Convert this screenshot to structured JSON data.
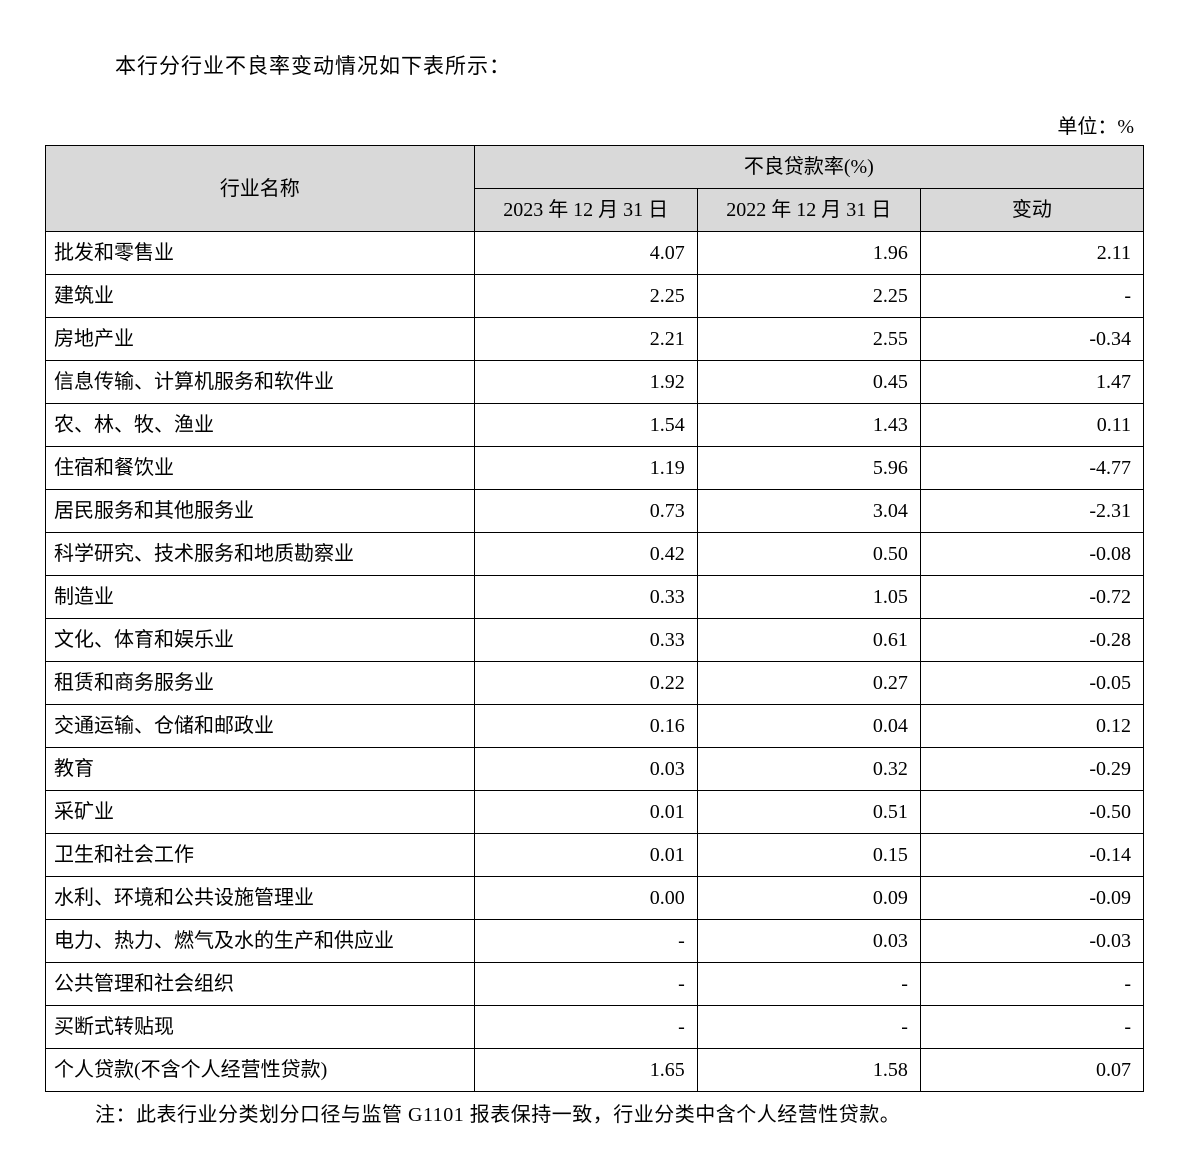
{
  "intro_text": "本行分行业不良率变动情况如下表所示：",
  "unit_label": "单位：%",
  "table": {
    "header": {
      "industry": "行业名称",
      "npl_group": "不良贷款率(%)",
      "col_2023": "2023 年 12 月 31 日",
      "col_2022": "2022 年 12 月 31 日",
      "col_change": "变动"
    },
    "rows": [
      {
        "name": "批发和零售业",
        "v2023": "4.07",
        "v2022": "1.96",
        "change": "2.11"
      },
      {
        "name": "建筑业",
        "v2023": "2.25",
        "v2022": "2.25",
        "change": "-"
      },
      {
        "name": "房地产业",
        "v2023": "2.21",
        "v2022": "2.55",
        "change": "-0.34"
      },
      {
        "name": "信息传输、计算机服务和软件业",
        "v2023": "1.92",
        "v2022": "0.45",
        "change": "1.47"
      },
      {
        "name": "农、林、牧、渔业",
        "v2023": "1.54",
        "v2022": "1.43",
        "change": "0.11"
      },
      {
        "name": "住宿和餐饮业",
        "v2023": "1.19",
        "v2022": "5.96",
        "change": "-4.77"
      },
      {
        "name": "居民服务和其他服务业",
        "v2023": "0.73",
        "v2022": "3.04",
        "change": "-2.31"
      },
      {
        "name": "科学研究、技术服务和地质勘察业",
        "v2023": "0.42",
        "v2022": "0.50",
        "change": "-0.08"
      },
      {
        "name": "制造业",
        "v2023": "0.33",
        "v2022": "1.05",
        "change": "-0.72"
      },
      {
        "name": "文化、体育和娱乐业",
        "v2023": "0.33",
        "v2022": "0.61",
        "change": "-0.28"
      },
      {
        "name": "租赁和商务服务业",
        "v2023": "0.22",
        "v2022": "0.27",
        "change": "-0.05"
      },
      {
        "name": "交通运输、仓储和邮政业",
        "v2023": "0.16",
        "v2022": "0.04",
        "change": "0.12"
      },
      {
        "name": "教育",
        "v2023": "0.03",
        "v2022": "0.32",
        "change": "-0.29"
      },
      {
        "name": "采矿业",
        "v2023": "0.01",
        "v2022": "0.51",
        "change": "-0.50"
      },
      {
        "name": "卫生和社会工作",
        "v2023": "0.01",
        "v2022": "0.15",
        "change": "-0.14"
      },
      {
        "name": "水利、环境和公共设施管理业",
        "v2023": "0.00",
        "v2022": "0.09",
        "change": "-0.09"
      },
      {
        "name": "电力、热力、燃气及水的生产和供应业",
        "v2023": "-",
        "v2022": "0.03",
        "change": "-0.03"
      },
      {
        "name": "公共管理和社会组织",
        "v2023": "-",
        "v2022": "-",
        "change": "-"
      },
      {
        "name": "买断式转贴现",
        "v2023": "-",
        "v2022": "-",
        "change": "-"
      },
      {
        "name": "个人贷款(不含个人经营性贷款)",
        "v2023": "1.65",
        "v2022": "1.58",
        "change": "0.07"
      }
    ]
  },
  "footnote": "注：此表行业分类划分口径与监管 G1101 报表保持一致，行业分类中含个人经营性贷款。",
  "style": {
    "header_bg": "#d9d9d9",
    "border_color": "#000000",
    "text_color": "#000000",
    "font_family": "SimSun",
    "fontsize_body": 20,
    "fontsize_intro": 21
  }
}
